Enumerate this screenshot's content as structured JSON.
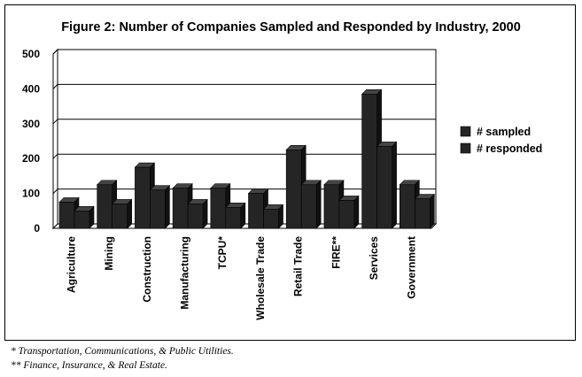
{
  "chart_data": {
    "type": "bar",
    "title": "Figure 2: Number of Companies Sampled and Responded by Industry, 2000",
    "categories": [
      "Agriculture",
      "Mining",
      "Construction",
      "Manufacturing",
      "TCPU*",
      "Wholesale Trade",
      "Retail Trade",
      "FIRE**",
      "Services",
      "Government"
    ],
    "series": [
      {
        "name": "# sampled",
        "values": [
          75,
          125,
          175,
          115,
          115,
          100,
          225,
          125,
          385,
          125
        ]
      },
      {
        "name": "# responded",
        "values": [
          50,
          70,
          110,
          70,
          60,
          55,
          125,
          80,
          235,
          85
        ]
      }
    ],
    "ylim": [
      0,
      500
    ],
    "yticks": [
      0,
      100,
      200,
      300,
      400,
      500
    ],
    "grid": true,
    "legend": "right",
    "colors": {
      "bar_face": "#252525",
      "bar_top": "#444444",
      "bar_side": "#111111",
      "gridline": "#000000"
    }
  },
  "footnotes": [
    "* Transportation, Communications, & Public Utilities.",
    "** Finance, Insurance, & Real Estate."
  ]
}
